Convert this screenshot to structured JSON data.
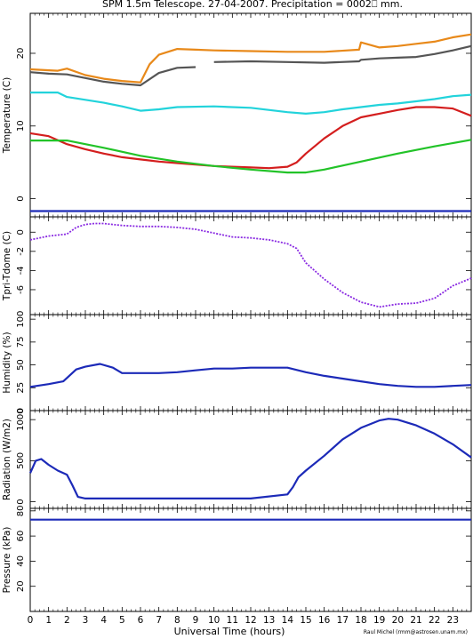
{
  "title": "SPM 1.5m Telescope. 27-04-2007. Precipitation = 0002⎕ mm.",
  "xlabel": "Universal Time (hours)",
  "credit": "Raul Michel (rmm@astrosen.unam.mx)",
  "x_ticks": [
    "0",
    "1",
    "2",
    "3",
    "4",
    "5",
    "6",
    "7",
    "8",
    "9",
    "10",
    "11",
    "12",
    "13",
    "14",
    "15",
    "16",
    "17",
    "18",
    "19",
    "20",
    "21",
    "22",
    "23"
  ],
  "chart_data": [
    {
      "type": "line",
      "ylabel": "Temperature (C)",
      "xlim": [
        0,
        24
      ],
      "ylim": [
        -2.5,
        25.5
      ],
      "y_ticks": [
        0,
        10,
        20
      ],
      "series": [
        {
          "color": "#e8891a",
          "x": [
            0,
            1.5,
            2,
            3,
            4,
            5,
            6,
            6.5,
            7,
            8,
            9,
            10,
            12,
            14,
            16,
            17.9,
            18,
            19,
            20,
            21,
            22,
            23,
            24
          ],
          "y": [
            17.8,
            17.6,
            17.9,
            17,
            16.5,
            16.2,
            16,
            18.5,
            19.8,
            20.6,
            20.5,
            20.4,
            20.3,
            20.2,
            20.2,
            20.5,
            21.5,
            20.8,
            21,
            21.3,
            21.6,
            22.2,
            22.6
          ]
        },
        {
          "color": "#555555",
          "x": [
            0,
            1,
            2,
            3,
            4,
            5,
            6,
            7,
            8,
            9,
            9.5,
            10,
            12,
            14,
            16,
            17.9,
            18,
            19,
            20,
            21,
            22,
            23,
            24
          ],
          "y": [
            17.4,
            17.2,
            17.1,
            16.6,
            16.1,
            15.8,
            15.6,
            17.3,
            18.0,
            18.1,
            null,
            18.8,
            18.9,
            18.8,
            18.7,
            18.9,
            19.1,
            19.3,
            19.4,
            19.5,
            19.9,
            20.4,
            21.0
          ]
        },
        {
          "color": "#22d3db",
          "x": [
            0,
            1.5,
            2,
            3,
            4,
            5,
            6,
            7,
            8,
            10,
            12,
            14,
            15,
            16,
            17,
            18,
            19,
            20,
            21,
            22,
            23,
            24
          ],
          "y": [
            14.6,
            14.6,
            14,
            13.6,
            13.2,
            12.7,
            12.1,
            12.3,
            12.6,
            12.7,
            12.5,
            11.9,
            11.7,
            11.9,
            12.3,
            12.6,
            12.9,
            13.1,
            13.4,
            13.7,
            14.1,
            14.3
          ]
        },
        {
          "color": "#d41e1e",
          "x": [
            0,
            1,
            2,
            3,
            4,
            5,
            6,
            7,
            8,
            10,
            12,
            13,
            14,
            14.5,
            15,
            16,
            17,
            18,
            19,
            20,
            21,
            22,
            23,
            24
          ],
          "y": [
            9,
            8.6,
            7.5,
            6.8,
            6.2,
            5.7,
            5.4,
            5.1,
            4.9,
            4.5,
            4.3,
            4.2,
            4.4,
            5,
            6.2,
            8.3,
            10,
            11.2,
            11.7,
            12.2,
            12.6,
            12.6,
            12.4,
            11.4
          ]
        },
        {
          "color": "#22c328",
          "x": [
            0,
            2,
            4,
            6,
            8,
            10,
            12,
            14,
            15,
            16,
            18,
            20,
            22,
            24
          ],
          "y": [
            8,
            8,
            7,
            5.9,
            5.1,
            4.5,
            4,
            3.6,
            3.6,
            4,
            5.1,
            6.2,
            7.2,
            8.1
          ]
        },
        {
          "color": "#1c2ab8",
          "x": [
            0,
            24
          ],
          "y": [
            -1.7,
            -1.7
          ]
        }
      ]
    },
    {
      "type": "scatter",
      "ylabel": "Tpri-Tdome (C)",
      "xlim": [
        0,
        24
      ],
      "ylim": [
        -8.6,
        1.6
      ],
      "y_ticks": [
        -6,
        -4,
        -2,
        0
      ],
      "series": [
        {
          "color": "#8a2be2",
          "x": [
            0,
            1,
            2,
            2.5,
            3,
            3.5,
            4,
            5,
            6,
            7,
            8,
            9,
            10,
            11,
            12,
            13,
            14,
            14.5,
            15,
            16,
            17,
            18,
            19,
            20,
            21,
            22,
            23,
            24
          ],
          "y": [
            -0.8,
            -0.4,
            -0.2,
            0.5,
            0.8,
            0.9,
            0.9,
            0.7,
            0.6,
            0.6,
            0.5,
            0.3,
            -0.1,
            -0.5,
            -0.6,
            -0.8,
            -1.2,
            -1.7,
            -3.2,
            -4.9,
            -6.3,
            -7.3,
            -7.8,
            -7.5,
            -7.4,
            -6.9,
            -5.6,
            -4.8
          ]
        }
      ]
    },
    {
      "type": "line",
      "ylabel": "Humidity (%)",
      "xlim": [
        0,
        24
      ],
      "ylim": [
        0,
        105
      ],
      "y_ticks": [
        0,
        25,
        50,
        75,
        100
      ],
      "series": [
        {
          "color": "#1c2ab8",
          "x": [
            0,
            1,
            1.8,
            2.5,
            3,
            3.8,
            4.5,
            5,
            6,
            7,
            8,
            9,
            10,
            11,
            12,
            13,
            14,
            15,
            16,
            17,
            18,
            19,
            20,
            21,
            22,
            23,
            24
          ],
          "y": [
            26,
            29,
            32,
            45,
            48,
            51,
            47,
            41,
            41,
            41,
            42,
            44,
            46,
            46,
            47,
            47,
            47,
            42,
            38,
            35,
            32,
            29,
            27,
            26,
            26,
            27,
            28
          ]
        }
      ]
    },
    {
      "type": "line",
      "ylabel": "Radiation (W/m2)",
      "xlim": [
        0,
        24
      ],
      "ylim": [
        -80,
        1110
      ],
      "y_ticks": [
        0,
        500,
        1000
      ],
      "series": [
        {
          "color": "#1c2ab8",
          "x": [
            0,
            0.3,
            0.6,
            1,
            1.5,
            2,
            2.3,
            2.6,
            3,
            4,
            6,
            8,
            10,
            12,
            14,
            14.3,
            14.6,
            15,
            16,
            17,
            18,
            19,
            19.5,
            20,
            21,
            22,
            23,
            24
          ],
          "y": [
            350,
            500,
            520,
            450,
            380,
            330,
            200,
            60,
            40,
            40,
            40,
            40,
            40,
            40,
            90,
            180,
            300,
            380,
            560,
            760,
            900,
            990,
            1010,
            1000,
            930,
            830,
            700,
            540
          ]
        }
      ]
    },
    {
      "type": "line",
      "ylabel": "Pressure (kPa)",
      "xlim": [
        0,
        24
      ],
      "ylim": [
        0,
        82
      ],
      "y_ticks": [
        20,
        40,
        60,
        80
      ],
      "series": [
        {
          "color": "#1c2ab8",
          "x": [
            0,
            24
          ],
          "y": [
            73,
            73
          ]
        }
      ]
    }
  ]
}
